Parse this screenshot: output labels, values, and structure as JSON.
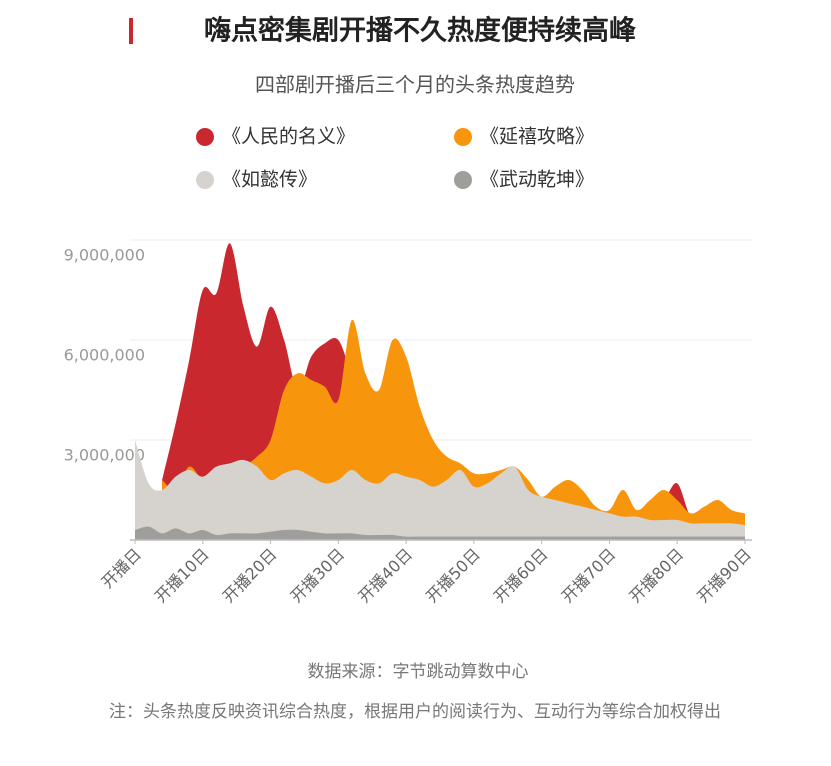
{
  "chart_data": {
    "type": "area",
    "title": "嗨点密集剧开播不久热度便持续高峰",
    "subtitle": "四部剧开播后三个月的头条热度趋势",
    "source": "数据来源：字节跳动算数中心",
    "note": "注：头条热度反映资讯综合热度，根据用户的阅读行为、互动行为等综合加权得出",
    "x": [
      0,
      2,
      4,
      6,
      8,
      10,
      12,
      14,
      16,
      18,
      20,
      22,
      24,
      26,
      28,
      30,
      32,
      34,
      36,
      38,
      40,
      42,
      44,
      46,
      48,
      50,
      52,
      54,
      56,
      58,
      60,
      62,
      64,
      66,
      68,
      70,
      72,
      74,
      76,
      78,
      80,
      82,
      84,
      86,
      88,
      90
    ],
    "xlim": [
      0,
      91
    ],
    "xticks": [
      {
        "value": 0,
        "label": "开播日"
      },
      {
        "value": 10,
        "label": "开播10日"
      },
      {
        "value": 20,
        "label": "开播20日"
      },
      {
        "value": 30,
        "label": "开播30日"
      },
      {
        "value": 40,
        "label": "开播40日"
      },
      {
        "value": 50,
        "label": "开播50日"
      },
      {
        "value": 60,
        "label": "开播60日"
      },
      {
        "value": 70,
        "label": "开播70日"
      },
      {
        "value": 80,
        "label": "开播80日"
      },
      {
        "value": 90,
        "label": "开播90日"
      }
    ],
    "ylim": [
      0,
      9000000
    ],
    "yticks": [
      {
        "value": 3000000,
        "label": "3,000,000"
      },
      {
        "value": 6000000,
        "label": "6,000,000"
      },
      {
        "value": 9000000,
        "label": "9,000,000"
      }
    ],
    "grid": true,
    "series": [
      {
        "name": "《人民的名义》",
        "color": "#c8282e",
        "values": [
          null,
          null,
          1800000,
          3500000,
          5400000,
          7500000,
          7400000,
          8900000,
          7000000,
          5800000,
          7000000,
          6000000,
          4500000,
          5500000,
          5900000,
          6000000,
          5000000,
          4500000,
          4000000,
          4000000,
          3500000,
          3000000,
          2500000,
          2200000,
          2000000,
          1800000,
          1800000,
          1900000,
          1800000,
          1500000,
          1200000,
          1200000,
          1300000,
          1200000,
          900000,
          800000,
          1000000,
          800000,
          1100000,
          1200000,
          1700000,
          700000,
          800000,
          900000,
          800000,
          700000
        ]
      },
      {
        "name": "《延禧攻略》",
        "color": "#f7960c",
        "values": [
          null,
          null,
          1800000,
          1500000,
          2200000,
          1800000,
          1900000,
          2000000,
          2200000,
          2500000,
          3000000,
          4500000,
          5000000,
          4800000,
          4600000,
          4200000,
          6600000,
          5000000,
          4500000,
          6000000,
          5500000,
          4000000,
          3000000,
          2500000,
          2300000,
          2000000,
          2000000,
          2100000,
          2200000,
          1800000,
          1300000,
          1600000,
          1800000,
          1500000,
          1000000,
          900000,
          1500000,
          900000,
          1200000,
          1500000,
          1200000,
          800000,
          1000000,
          1200000,
          900000,
          800000
        ]
      },
      {
        "name": "《如懿传》",
        "color": "#d6d3cf",
        "values": [
          3000000,
          1700000,
          1500000,
          1900000,
          2100000,
          1900000,
          2200000,
          2300000,
          2400000,
          2200000,
          1800000,
          2000000,
          2100000,
          1900000,
          1700000,
          1800000,
          2100000,
          1800000,
          1700000,
          2000000,
          1900000,
          1800000,
          1600000,
          1800000,
          2100000,
          1600000,
          1700000,
          2000000,
          2200000,
          1500000,
          1300000,
          1200000,
          1100000,
          1000000,
          900000,
          800000,
          700000,
          700000,
          600000,
          600000,
          600000,
          500000,
          500000,
          500000,
          500000,
          450000
        ]
      },
      {
        "name": "《武动乾坤》",
        "color": "#a09e9b",
        "values": [
          300000,
          400000,
          200000,
          350000,
          200000,
          300000,
          150000,
          200000,
          200000,
          200000,
          250000,
          300000,
          300000,
          250000,
          200000,
          200000,
          200000,
          150000,
          150000,
          150000,
          100000,
          100000,
          100000,
          100000,
          100000,
          100000,
          100000,
          100000,
          100000,
          100000,
          100000,
          100000,
          100000,
          100000,
          100000,
          100000,
          100000,
          100000,
          100000,
          100000,
          100000,
          100000,
          100000,
          100000,
          100000,
          100000
        ]
      }
    ]
  }
}
